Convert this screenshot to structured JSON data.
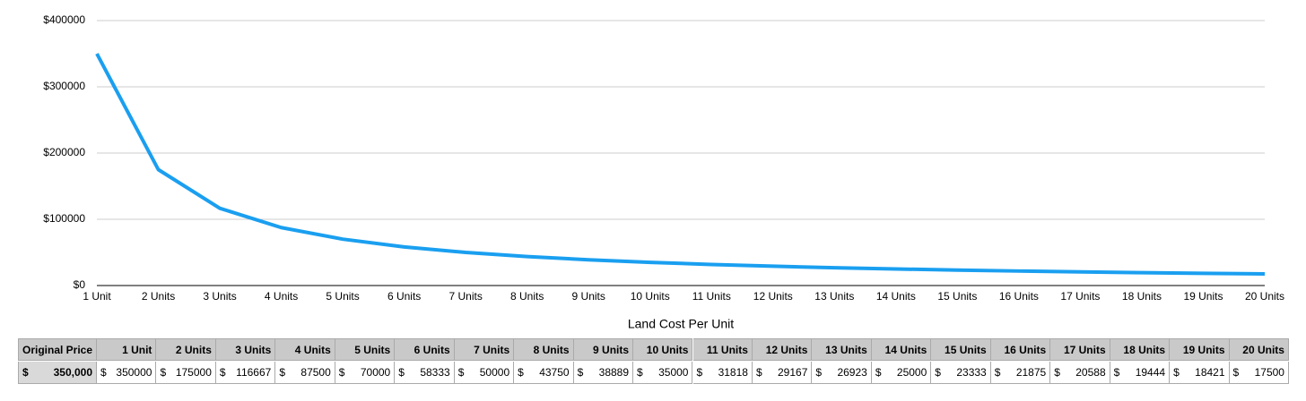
{
  "chart_data": {
    "type": "line",
    "x_label": "Land Cost Per Unit",
    "categories": [
      "1 Unit",
      "2 Units",
      "3 Units",
      "4 Units",
      "5 Units",
      "6 Units",
      "7 Units",
      "8 Units",
      "9 Units",
      "10 Units",
      "11 Units",
      "12 Units",
      "13 Units",
      "14 Units",
      "15 Units",
      "16 Units",
      "17 Units",
      "18 Units",
      "19 Units",
      "20 Units"
    ],
    "series": [
      {
        "color": "#1a9ff0",
        "values": [
          350000,
          175000,
          116667,
          87500,
          70000,
          58333,
          50000,
          43750,
          38889,
          35000,
          31818,
          29167,
          26923,
          25000,
          23333,
          21875,
          20588,
          19444,
          18421,
          17500
        ]
      }
    ],
    "ylim": [
      0,
      400000
    ],
    "yticks": [
      {
        "value": 0,
        "label": "$0"
      },
      {
        "value": 100000,
        "label": "$100000"
      },
      {
        "value": 200000,
        "label": "$200000"
      },
      {
        "value": 300000,
        "label": "$300000"
      },
      {
        "value": 400000,
        "label": "$400000"
      }
    ],
    "grid": true
  },
  "table": {
    "header": [
      "Original Price",
      "1 Unit",
      "2 Units",
      "3 Units",
      "4 Units",
      "5 Units",
      "6 Units",
      "7 Units",
      "8 Units",
      "9 Units",
      "10 Units",
      "11 Units",
      "12 Units",
      "13 Units",
      "14 Units",
      "15 Units",
      "16 Units",
      "17 Units",
      "18 Units",
      "19 Units",
      "20 Units"
    ],
    "currency": "$",
    "original_price": "350,000",
    "row": [
      350000,
      175000,
      116667,
      87500,
      70000,
      58333,
      50000,
      43750,
      38889,
      35000,
      31818,
      29167,
      26923,
      25000,
      23333,
      21875,
      20588,
      19444,
      18421,
      17500
    ]
  }
}
